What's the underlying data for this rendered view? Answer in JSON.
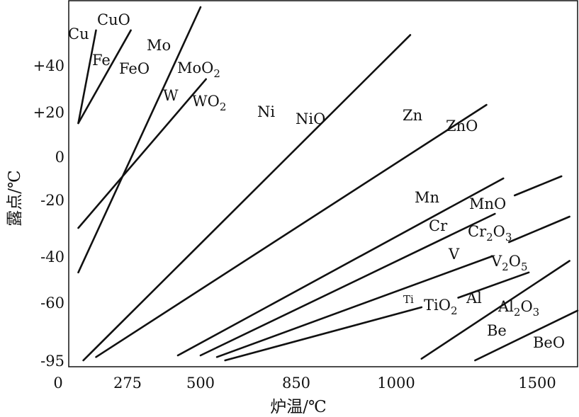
{
  "chart_data": {
    "type": "line",
    "xlabel": "炉温/℃",
    "ylabel": "露点/℃",
    "x_ticks": [
      "0",
      "275",
      "500",
      "850",
      "1000",
      "1500"
    ],
    "y_ticks": [
      "+40",
      "+20",
      "0",
      "-20",
      "-40",
      "-60",
      "-95"
    ],
    "xlim": [
      0,
      1500
    ],
    "grid": false,
    "legend": "none",
    "line_color": "#111111",
    "series": [
      {
        "metal": "Cu",
        "oxide": "CuO",
        "points": [
          [
            80,
            15
          ],
          [
            150,
            55
          ]
        ]
      },
      {
        "metal": "Fe",
        "oxide": "FeO",
        "points": [
          [
            80,
            15
          ],
          [
            285,
            55
          ]
        ]
      },
      {
        "metal": "Mo",
        "oxide": "MoO2",
        "points": [
          [
            80,
            -47
          ],
          [
            500,
            65
          ]
        ]
      },
      {
        "metal": "W",
        "oxide": "WO2",
        "points": [
          [
            80,
            -30
          ],
          [
            520,
            34
          ]
        ]
      },
      {
        "metal": "Ni",
        "oxide": "NiO",
        "points": [
          [
            100,
            -95
          ],
          [
            1050,
            53
          ]
        ]
      },
      {
        "metal": "Zn",
        "oxide": "ZnO",
        "points": [
          [
            150,
            -93
          ],
          [
            1320,
            23
          ]
        ]
      },
      {
        "metal": "Mn",
        "oxide": "MnO",
        "points": [
          [
            430,
            -92
          ],
          [
            1380,
            -10
          ]
        ]
      },
      {
        "metal": "",
        "oxide": "MnO",
        "points": [
          [
            1420,
            -18
          ],
          [
            1560,
            -9
          ]
        ]
      },
      {
        "metal": "Cr",
        "oxide": "Cr2O3",
        "points": [
          [
            500,
            -92
          ],
          [
            1350,
            -25
          ]
        ]
      },
      {
        "metal": "",
        "oxide": "Cr2O3",
        "points": [
          [
            1400,
            -35
          ],
          [
            1580,
            -26
          ]
        ]
      },
      {
        "metal": "V",
        "oxide": "V2O5",
        "points": [
          [
            560,
            -93
          ],
          [
            1340,
            -40
          ]
        ]
      },
      {
        "metal": "Ti",
        "oxide": "TiO2",
        "points": [
          [
            590,
            -95
          ],
          [
            1090,
            -63
          ]
        ]
      },
      {
        "metal": "Al",
        "oxide": "Al2O3",
        "points": [
          [
            1220,
            -58
          ],
          [
            1470,
            -47
          ]
        ]
      },
      {
        "metal": "",
        "oxide": "Al2O3",
        "points": [
          [
            1090,
            -94
          ],
          [
            1580,
            -42
          ]
        ]
      },
      {
        "metal": "Be",
        "oxide": "BeO",
        "points": [
          [
            1280,
            -95
          ],
          [
            1600,
            -65
          ]
        ]
      }
    ],
    "labels": {
      "cu": "Cu",
      "cuo": "CuO",
      "fe": "Fe",
      "feo": "FeO",
      "mo": "Mo",
      "moo2_base": "MoO",
      "moo2_sub": "2",
      "w": "W",
      "wo2_base": "WO",
      "wo2_sub": "2",
      "ni": "Ni",
      "nio": "NiO",
      "zn": "Zn",
      "zno": "ZnO",
      "mn": "Mn",
      "mno": "MnO",
      "cr": "Cr",
      "cr2o3_a": "Cr",
      "cr2o3_b": "2",
      "cr2o3_c": "O",
      "cr2o3_d": "3",
      "v": "V",
      "v2o5_a": "V",
      "v2o5_b": "2",
      "v2o5_c": "O",
      "v2o5_d": "5",
      "ti": "Ti",
      "tio2_base": "TiO",
      "tio2_sub": "2",
      "al": "Al",
      "al2o3_a": "Al",
      "al2o3_b": "2",
      "al2o3_c": "O",
      "al2o3_d": "3",
      "be": "Be",
      "beo": "BeO"
    }
  }
}
